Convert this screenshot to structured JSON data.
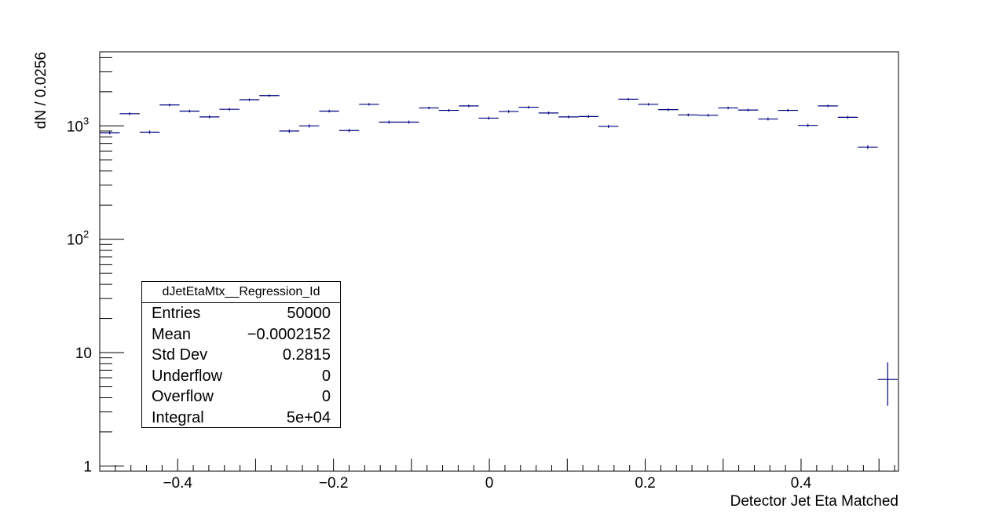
{
  "chart_data": {
    "type": "scatter",
    "title": "",
    "xlabel": "Detector Jet Eta Matched",
    "ylabel": "dN / 0.0256",
    "xlim": [
      -0.5,
      0.525
    ],
    "ylim": [
      0.9,
      4500
    ],
    "yscale": "log",
    "grid": false,
    "x_ticks": [
      "−0.4",
      "−0.2",
      "0",
      "0.2",
      "0.4"
    ],
    "x_tick_values": [
      -0.4,
      -0.2,
      0,
      0.2,
      0.4
    ],
    "y_ticks": [
      {
        "value": 1,
        "base": "1",
        "exp": ""
      },
      {
        "value": 10,
        "base": "10",
        "exp": ""
      },
      {
        "value": 100,
        "base": "10",
        "exp": "2"
      },
      {
        "value": 1000,
        "base": "10",
        "exp": "3"
      }
    ],
    "series": [
      {
        "marker": "cross",
        "color": "#000080",
        "x": [
          -0.4872,
          -0.4616,
          -0.436,
          -0.4104,
          -0.3848,
          -0.3592,
          -0.3336,
          -0.308,
          -0.2824,
          -0.2568,
          -0.2312,
          -0.2056,
          -0.18,
          -0.1544,
          -0.1288,
          -0.1032,
          -0.0776,
          -0.052,
          -0.0264,
          -0.0008,
          0.0248,
          0.0504,
          0.076,
          0.1016,
          0.1272,
          0.1528,
          0.1784,
          0.204,
          0.2296,
          0.2552,
          0.2808,
          0.3064,
          0.332,
          0.3576,
          0.3832,
          0.4088,
          0.4344,
          0.46,
          0.4856,
          0.5112
        ],
        "y": [
          870,
          1280,
          880,
          1530,
          1350,
          1200,
          1400,
          1700,
          1850,
          900,
          1000,
          1350,
          910,
          1550,
          1080,
          1080,
          1440,
          1370,
          1500,
          1170,
          1340,
          1460,
          1300,
          1200,
          1210,
          990,
          1720,
          1550,
          1390,
          1250,
          1240,
          1440,
          1380,
          1150,
          1370,
          1010,
          1500,
          1190,
          650,
          5.8
        ],
        "yerr": [
          29.5,
          35.8,
          29.7,
          39.1,
          36.7,
          34.6,
          37.4,
          41.2,
          43.0,
          30.0,
          31.6,
          36.7,
          30.2,
          39.4,
          32.9,
          32.9,
          37.9,
          37.0,
          38.7,
          34.2,
          36.6,
          38.2,
          36.1,
          34.6,
          34.8,
          31.5,
          41.5,
          39.4,
          37.3,
          35.4,
          35.2,
          37.9,
          37.1,
          33.9,
          37.0,
          31.8,
          38.7,
          34.5,
          25.5,
          2.4
        ]
      }
    ],
    "legend": "none"
  },
  "stats": {
    "title": "dJetEtaMtx__Regression_Id",
    "rows": [
      {
        "label": "Entries",
        "value": "50000"
      },
      {
        "label": "Mean",
        "value": "−0.0002152"
      },
      {
        "label": "Std Dev",
        "value": "0.2815"
      },
      {
        "label": "Underflow",
        "value": "0"
      },
      {
        "label": "Overflow",
        "value": "0"
      },
      {
        "label": "Integral",
        "value": "5e+04"
      }
    ]
  }
}
